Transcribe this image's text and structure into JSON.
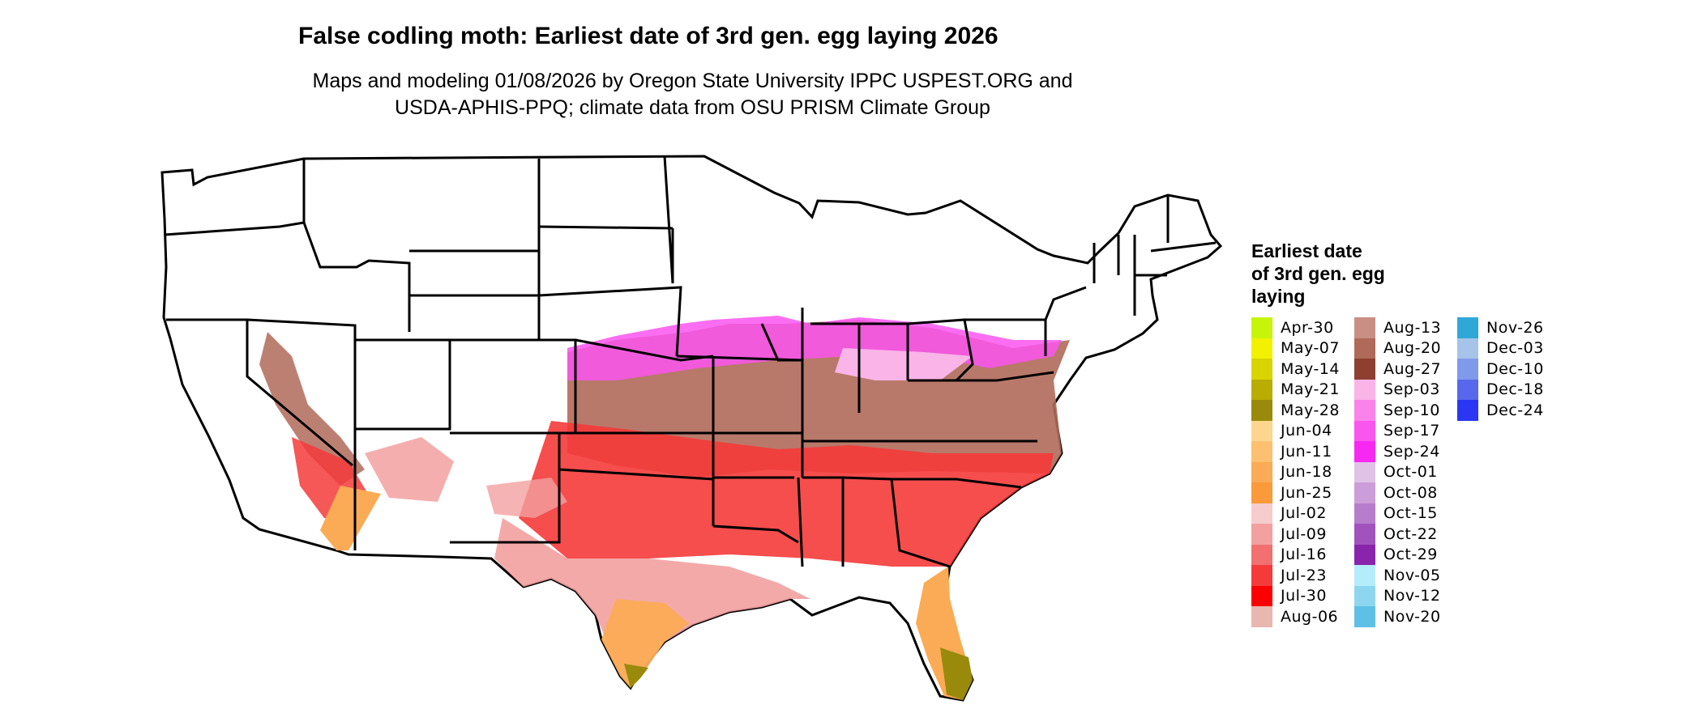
{
  "title": "False codling moth: Earliest date of 3rd gen. egg laying 2026",
  "subtitle_line1": "Maps and modeling 01/08/2026 by Oregon State University IPPC USPEST.ORG and",
  "subtitle_line2": "USDA-APHIS-PPQ; climate data from OSU PRISM Climate Group",
  "legend": {
    "title_line1": "Earliest date",
    "title_line2": "of 3rd gen. egg",
    "title_line3": "laying",
    "columns": [
      [
        {
          "label": "Apr-30",
          "color": "#c6f50a"
        },
        {
          "label": "May-07",
          "color": "#f2f200"
        },
        {
          "label": "May-14",
          "color": "#d8d400"
        },
        {
          "label": "May-21",
          "color": "#b8ad00"
        },
        {
          "label": "May-28",
          "color": "#9a8a0c"
        },
        {
          "label": "Jun-04",
          "color": "#fdd68e"
        },
        {
          "label": "Jun-11",
          "color": "#fcc070"
        },
        {
          "label": "Jun-18",
          "color": "#fbab55"
        },
        {
          "label": "Jun-25",
          "color": "#fa9a3a"
        },
        {
          "label": "Jul-02",
          "color": "#f6cccc"
        },
        {
          "label": "Jul-09",
          "color": "#f3a0a0"
        },
        {
          "label": "Jul-16",
          "color": "#f27070"
        },
        {
          "label": "Jul-23",
          "color": "#f53a3a"
        },
        {
          "label": "Jul-30",
          "color": "#fb0000"
        },
        {
          "label": "Aug-06",
          "color": "#e8b8b0"
        }
      ],
      [
        {
          "label": "Aug-13",
          "color": "#c98f85"
        },
        {
          "label": "Aug-20",
          "color": "#b06a5a"
        },
        {
          "label": "Aug-27",
          "color": "#8e3f30"
        },
        {
          "label": "Sep-03",
          "color": "#fab4e8"
        },
        {
          "label": "Sep-10",
          "color": "#fa82ea"
        },
        {
          "label": "Sep-17",
          "color": "#fa55ee"
        },
        {
          "label": "Sep-24",
          "color": "#f728f2"
        },
        {
          "label": "Oct-01",
          "color": "#e0c2e6"
        },
        {
          "label": "Oct-08",
          "color": "#cc9dd8"
        },
        {
          "label": "Oct-15",
          "color": "#b77ccb"
        },
        {
          "label": "Oct-22",
          "color": "#a252bd"
        },
        {
          "label": "Oct-29",
          "color": "#8a24ac"
        },
        {
          "label": "Nov-05",
          "color": "#b4ecfc"
        },
        {
          "label": "Nov-12",
          "color": "#8ed6f0"
        },
        {
          "label": "Nov-20",
          "color": "#5ec0e6"
        }
      ],
      [
        {
          "label": "Nov-26",
          "color": "#2fa8d8"
        },
        {
          "label": "Dec-03",
          "color": "#a6c4ea"
        },
        {
          "label": "Dec-10",
          "color": "#7f9aea"
        },
        {
          "label": "Dec-18",
          "color": "#5868ec"
        },
        {
          "label": "Dec-24",
          "color": "#2a36f4"
        }
      ]
    ]
  }
}
